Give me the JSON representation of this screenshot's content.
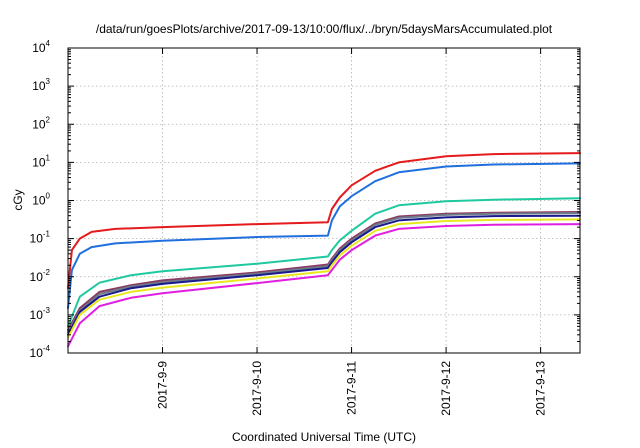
{
  "chart_data": {
    "type": "line",
    "title": "/data/run/goesPlots/archive/2017-09-13/10:00/flux/../bryn/5daysMarsAccumulated.plot",
    "xlabel": "Coordinated Universal Time (UTC)",
    "ylabel": "cGy",
    "yscale": "log",
    "ylim": [
      0.0001,
      10000
    ],
    "xlim": [
      "2017-09-08 00:00",
      "2017-09-13 10:00"
    ],
    "grid": true,
    "legend": "none",
    "x_ticks": [
      {
        "x": "2017-09-09 00:00",
        "label": "2017-9-9"
      },
      {
        "x": "2017-09-10 00:00",
        "label": "2017-9-10"
      },
      {
        "x": "2017-09-11 00:00",
        "label": "2017-9-11"
      },
      {
        "x": "2017-09-12 00:00",
        "label": "2017-9-12"
      },
      {
        "x": "2017-09-13 00:00",
        "label": "2017-9-13"
      }
    ],
    "y_ticks": [
      {
        "value": 0.0001,
        "base": "10",
        "exp": "-4"
      },
      {
        "value": 0.001,
        "base": "10",
        "exp": "-3"
      },
      {
        "value": 0.01,
        "base": "10",
        "exp": "-2"
      },
      {
        "value": 0.1,
        "base": "10",
        "exp": "-1"
      },
      {
        "value": 1,
        "base": "10",
        "exp": "0"
      },
      {
        "value": 10,
        "base": "10",
        "exp": "1"
      },
      {
        "value": 100,
        "base": "10",
        "exp": "2"
      },
      {
        "value": 1000,
        "base": "10",
        "exp": "3"
      },
      {
        "value": 10000,
        "base": "10",
        "exp": "4"
      }
    ],
    "series": [
      {
        "color": "#e41a1c",
        "x": [
          "2017-09-08 00:00",
          "2017-09-08 01:00",
          "2017-09-08 03:00",
          "2017-09-08 06:00",
          "2017-09-08 12:00",
          "2017-09-09 00:00",
          "2017-09-10 00:00",
          "2017-09-10 18:00",
          "2017-09-10 19:00",
          "2017-09-10 21:00",
          "2017-09-11 00:00",
          "2017-09-11 06:00",
          "2017-09-11 12:00",
          "2017-09-12 00:00",
          "2017-09-12 12:00",
          "2017-09-13 10:00"
        ],
        "values": [
          0.005,
          0.05,
          0.1,
          0.15,
          0.18,
          0.2,
          0.24,
          0.27,
          0.6,
          1.2,
          2.5,
          6.0,
          10.0,
          14.5,
          16.5,
          17.5
        ]
      },
      {
        "color": "#1f6fde",
        "x": [
          "2017-09-08 00:00",
          "2017-09-08 01:00",
          "2017-09-08 03:00",
          "2017-09-08 06:00",
          "2017-09-08 12:00",
          "2017-09-09 00:00",
          "2017-09-10 00:00",
          "2017-09-10 18:00",
          "2017-09-10 19:00",
          "2017-09-10 21:00",
          "2017-09-11 00:00",
          "2017-09-11 06:00",
          "2017-09-11 12:00",
          "2017-09-12 00:00",
          "2017-09-12 12:00",
          "2017-09-13 10:00"
        ],
        "values": [
          0.0015,
          0.015,
          0.04,
          0.06,
          0.075,
          0.088,
          0.11,
          0.12,
          0.3,
          0.7,
          1.3,
          3.2,
          5.5,
          7.8,
          8.8,
          9.4
        ]
      },
      {
        "color": "#1ec9a0",
        "x": [
          "2017-09-08 00:00",
          "2017-09-08 03:00",
          "2017-09-08 08:00",
          "2017-09-08 16:00",
          "2017-09-09 00:00",
          "2017-09-10 00:00",
          "2017-09-10 18:00",
          "2017-09-10 19:00",
          "2017-09-10 21:00",
          "2017-09-11 00:00",
          "2017-09-11 06:00",
          "2017-09-11 12:00",
          "2017-09-12 00:00",
          "2017-09-12 12:00",
          "2017-09-13 10:00"
        ],
        "values": [
          0.0005,
          0.003,
          0.007,
          0.011,
          0.014,
          0.022,
          0.034,
          0.05,
          0.09,
          0.16,
          0.45,
          0.75,
          0.95,
          1.05,
          1.15
        ]
      },
      {
        "color": "#8b3a62",
        "x": [
          "2017-09-08 00:00",
          "2017-09-08 03:00",
          "2017-09-08 08:00",
          "2017-09-08 16:00",
          "2017-09-09 00:00",
          "2017-09-10 00:00",
          "2017-09-10 18:00",
          "2017-09-10 19:00",
          "2017-09-10 21:00",
          "2017-09-11 00:00",
          "2017-09-11 06:00",
          "2017-09-11 12:00",
          "2017-09-12 00:00",
          "2017-09-12 12:00",
          "2017-09-13 10:00"
        ],
        "values": [
          0.0004,
          0.0015,
          0.004,
          0.006,
          0.008,
          0.013,
          0.021,
          0.03,
          0.055,
          0.1,
          0.25,
          0.38,
          0.45,
          0.48,
          0.5
        ]
      },
      {
        "color": "#6c7a89",
        "x": [
          "2017-09-08 00:00",
          "2017-09-08 03:00",
          "2017-09-08 08:00",
          "2017-09-08 16:00",
          "2017-09-09 00:00",
          "2017-09-10 00:00",
          "2017-09-10 18:00",
          "2017-09-10 19:00",
          "2017-09-10 21:00",
          "2017-09-11 00:00",
          "2017-09-11 06:00",
          "2017-09-11 12:00",
          "2017-09-12 00:00",
          "2017-09-12 12:00",
          "2017-09-13 10:00"
        ],
        "values": [
          0.00035,
          0.0013,
          0.0035,
          0.0055,
          0.0072,
          0.012,
          0.019,
          0.027,
          0.05,
          0.09,
          0.23,
          0.35,
          0.42,
          0.45,
          0.47
        ]
      },
      {
        "color": "#1a1a8c",
        "x": [
          "2017-09-08 00:00",
          "2017-09-08 03:00",
          "2017-09-08 08:00",
          "2017-09-08 16:00",
          "2017-09-09 00:00",
          "2017-09-10 00:00",
          "2017-09-10 18:00",
          "2017-09-10 19:00",
          "2017-09-10 21:00",
          "2017-09-11 00:00",
          "2017-09-11 06:00",
          "2017-09-11 12:00",
          "2017-09-12 00:00",
          "2017-09-12 12:00",
          "2017-09-13 10:00"
        ],
        "values": [
          0.0003,
          0.0012,
          0.003,
          0.005,
          0.0065,
          0.011,
          0.017,
          0.024,
          0.044,
          0.08,
          0.2,
          0.3,
          0.36,
          0.39,
          0.4
        ]
      },
      {
        "color": "#e8e820",
        "x": [
          "2017-09-08 00:00",
          "2017-09-08 03:00",
          "2017-09-08 08:00",
          "2017-09-08 16:00",
          "2017-09-09 00:00",
          "2017-09-10 00:00",
          "2017-09-10 18:00",
          "2017-09-10 19:00",
          "2017-09-10 21:00",
          "2017-09-11 00:00",
          "2017-09-11 06:00",
          "2017-09-11 12:00",
          "2017-09-12 00:00",
          "2017-09-12 12:00",
          "2017-09-13 10:00"
        ],
        "values": [
          0.00025,
          0.001,
          0.0025,
          0.004,
          0.0052,
          0.009,
          0.014,
          0.02,
          0.036,
          0.065,
          0.16,
          0.24,
          0.29,
          0.31,
          0.32
        ]
      },
      {
        "color": "#e01fe0",
        "x": [
          "2017-09-08 00:00",
          "2017-09-08 03:00",
          "2017-09-08 08:00",
          "2017-09-08 16:00",
          "2017-09-09 00:00",
          "2017-09-10 00:00",
          "2017-09-10 18:00",
          "2017-09-10 19:00",
          "2017-09-10 21:00",
          "2017-09-11 00:00",
          "2017-09-11 06:00",
          "2017-09-11 12:00",
          "2017-09-12 00:00",
          "2017-09-12 12:00",
          "2017-09-13 10:00"
        ],
        "values": [
          0.00015,
          0.0006,
          0.0017,
          0.0028,
          0.0037,
          0.0068,
          0.011,
          0.015,
          0.028,
          0.05,
          0.12,
          0.18,
          0.215,
          0.23,
          0.24
        ]
      }
    ]
  }
}
